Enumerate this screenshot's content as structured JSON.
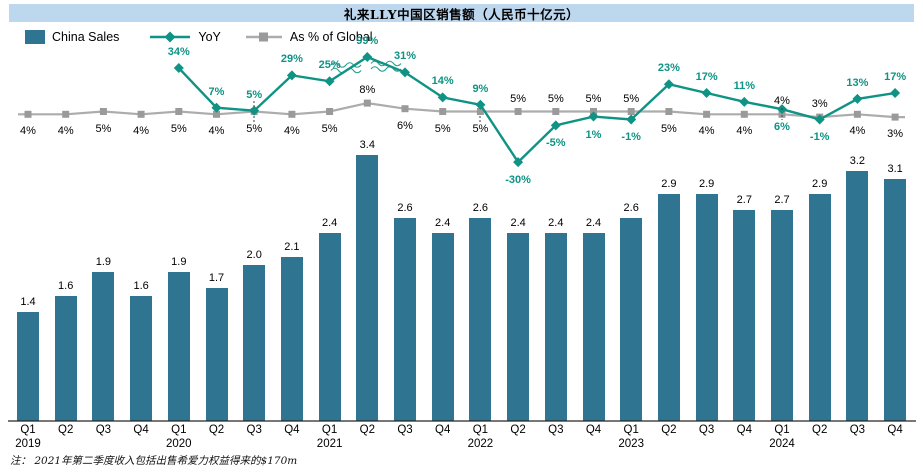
{
  "title": "礼来LLY中国区销售额（人民币十亿元）",
  "legend": {
    "items": [
      {
        "label": "China Sales"
      },
      {
        "label": "YoY"
      },
      {
        "label": "As % of Global"
      }
    ]
  },
  "footnote": "注： 2021年第二季度收入包括出售希爱力权益得来的$170m",
  "colors": {
    "bar": "#2F7490",
    "yoy_line": "#0E9384",
    "pct_line": "#ACACAC",
    "pct_marker": "#9A9A9A",
    "title_bg": "#BDD7EE",
    "title_text": "#000000",
    "axis": "#262626",
    "bar_label": "#000000",
    "pct_label": "#000000"
  },
  "chart_data": {
    "type": "bar",
    "subtype": "bar + two line series combo",
    "categories": [
      "Q1",
      "Q2",
      "Q3",
      "Q4",
      "Q1",
      "Q2",
      "Q3",
      "Q4",
      "Q1",
      "Q2",
      "Q3",
      "Q4",
      "Q1",
      "Q2",
      "Q3",
      "Q4",
      "Q1",
      "Q2",
      "Q3",
      "Q4",
      "Q1",
      "Q2",
      "Q3",
      "Q4"
    ],
    "years": [
      {
        "index": 0,
        "label": "2019"
      },
      {
        "index": 4,
        "label": "2020"
      },
      {
        "index": 8,
        "label": "2021"
      },
      {
        "index": 12,
        "label": "2022"
      },
      {
        "index": 16,
        "label": "2023"
      },
      {
        "index": 20,
        "label": "2024"
      }
    ],
    "series": [
      {
        "name": "China Sales",
        "type": "bar",
        "unit": "RMB bn",
        "values": [
          1.4,
          1.6,
          1.9,
          1.6,
          1.9,
          1.7,
          2.0,
          2.1,
          2.4,
          3.4,
          2.6,
          2.4,
          2.6,
          2.4,
          2.4,
          2.4,
          2.6,
          2.9,
          2.9,
          2.7,
          2.7,
          2.9,
          3.2,
          3.1
        ]
      },
      {
        "name": "YoY",
        "type": "line",
        "marker": "diamond",
        "unit": "%",
        "values": [
          null,
          null,
          null,
          null,
          34,
          7,
          5,
          29,
          25,
          99,
          31,
          14,
          9,
          -30,
          -5,
          1,
          -1,
          23,
          17,
          11,
          6,
          -1,
          13,
          17
        ],
        "label_side": [
          null,
          null,
          null,
          null,
          "above",
          "above",
          "above",
          "above",
          "above",
          "above",
          "above",
          "above",
          "above",
          "below",
          "below",
          "below",
          "below",
          "above",
          "above",
          "above",
          "below",
          "below",
          "above",
          "above"
        ]
      },
      {
        "name": "As % of Global",
        "type": "line",
        "marker": "square",
        "unit": "%",
        "values": [
          4,
          4,
          5,
          4,
          5,
          4,
          5,
          4,
          5,
          8,
          6,
          5,
          5,
          5,
          5,
          5,
          5,
          5,
          4,
          4,
          4,
          3,
          4,
          3
        ],
        "label_side": [
          "below",
          "below",
          "below",
          "below",
          "below",
          "below",
          "below",
          "below",
          "below",
          "above",
          "below",
          "below",
          "below",
          "above",
          "above",
          "above",
          "above",
          "below",
          "below",
          "below",
          "above",
          "above",
          "below",
          "below"
        ]
      }
    ],
    "axis_break": {
      "series": "YoY",
      "index": 9,
      "value": 99,
      "note": "wavy break marks clip the 99% peak"
    },
    "ylim_bars": [
      0,
      3.4
    ],
    "grid": false,
    "legend_position": "top-left"
  }
}
